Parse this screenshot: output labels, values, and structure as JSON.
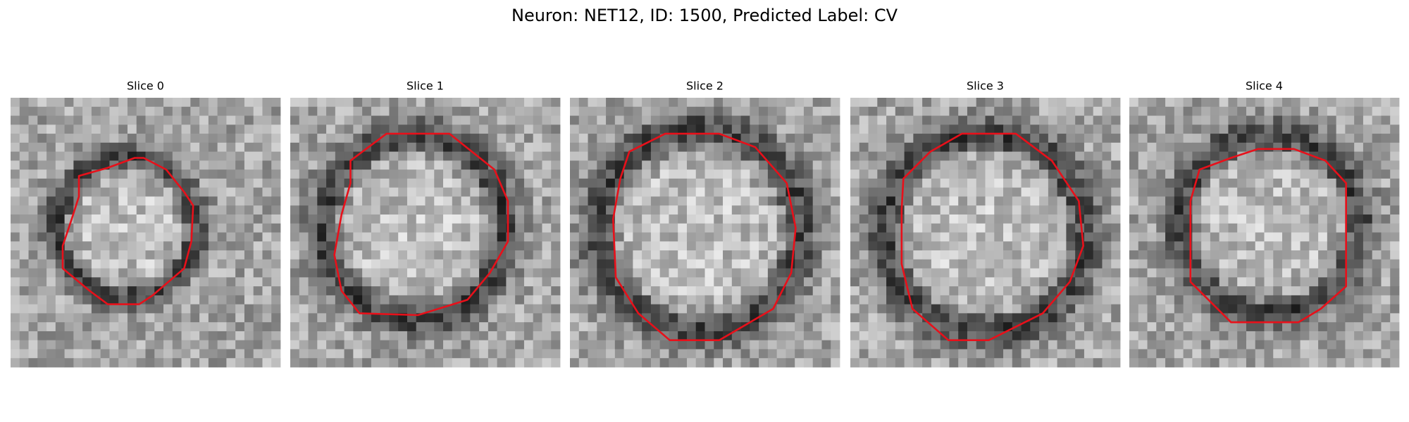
{
  "figure": {
    "title": "Neuron: NET12, ID: 1500, Predicted Label: CV",
    "panels": [
      {
        "title": "Slice 0"
      },
      {
        "title": "Slice 1"
      },
      {
        "title": "Slice 2"
      },
      {
        "title": "Slice 3"
      },
      {
        "title": "Slice 4"
      }
    ]
  }
}
